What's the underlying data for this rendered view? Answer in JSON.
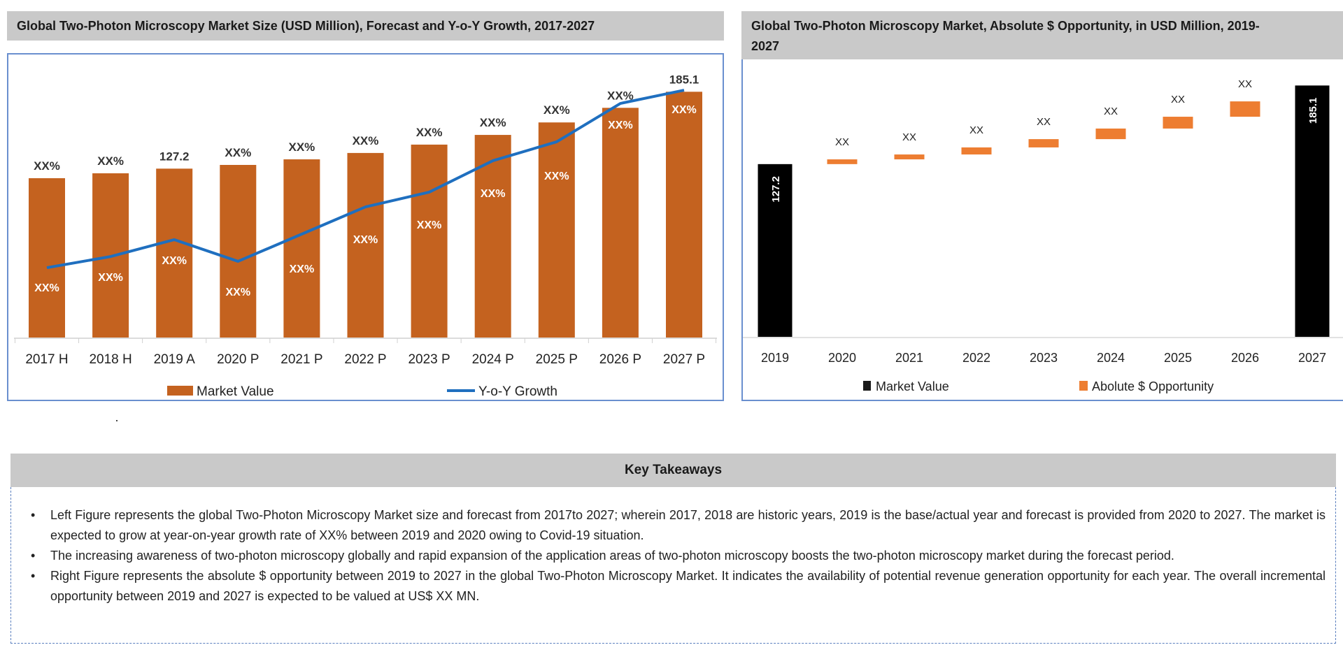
{
  "left_chart": {
    "title": "Global Two-Photon Microscopy Market Size (USD Million), Forecast and Y-o-Y Growth, 2017-2027",
    "legend": {
      "market_value": "Market Value",
      "yoy_growth": "Y-o-Y Growth"
    }
  },
  "right_chart": {
    "title_line1": "Global Two-Photon Microscopy Market, Absolute $ Opportunity, in USD Million, 2019-",
    "title_line2": "2027",
    "legend": {
      "market_value": "Market Value",
      "opportunity": "Abolute $ Opportunity"
    }
  },
  "key_takeaways": {
    "title": "Key Takeaways",
    "bullets": [
      "Left Figure represents the global Two-Photon Microscopy Market size and forecast from 2017to 2027; wherein 2017, 2018 are historic years, 2019 is the base/actual year and forecast is provided from 2020 to 2027. The market is expected to grow at year-on-year growth rate of XX% between 2019 and 2020 owing to Covid-19 situation.",
      "The increasing awareness of two-photon microscopy globally and rapid expansion of the application areas of two-photon microscopy boosts the two-photon microscopy market during the forecast period.",
      "Right Figure represents the absolute $ opportunity between 2019 to 2027 in the global Two-Photon Microscopy Market. It indicates the availability of potential revenue generation opportunity for each year. The overall incremental opportunity between 2019 and 2027 is expected to be valued at US$ XX MN."
    ]
  },
  "chart_data": [
    {
      "type": "bar+line",
      "title": "Global Two-Photon Microscopy Market Size (USD Million), Forecast and Y-o-Y Growth, 2017-2027",
      "categories": [
        "2017 H",
        "2018 H",
        "2019 A",
        "2020 P",
        "2021 P",
        "2022 P",
        "2023 P",
        "2024 P",
        "2025 P",
        "2026 P",
        "2027 P"
      ],
      "series": [
        {
          "name": "Market Value",
          "type": "bar",
          "color": "#C4621F",
          "values": [
            120.0,
            123.7,
            127.2,
            130.0,
            134.2,
            139.0,
            145.3,
            152.6,
            162.0,
            173.0,
            185.1
          ],
          "data_labels": [
            "XX%",
            "XX%",
            "127.2",
            "XX%",
            "XX%",
            "XX%",
            "XX%",
            "XX%",
            "XX%",
            "XX%",
            "185.1"
          ]
        },
        {
          "name": "Y-o-Y Growth",
          "type": "line",
          "color": "#1F6FBF",
          "axis": "secondary-unlabeled",
          "values": [
            52.6,
            61.0,
            73.7,
            57.4,
            77.9,
            98.4,
            109.5,
            133.2,
            147.4,
            176.3,
            186.3
          ],
          "data_labels": [
            "XX%",
            "XX%",
            "XX%",
            "XX%",
            "XX%",
            "XX%",
            "XX%",
            "XX%",
            "XX%",
            "XX%",
            "XX%"
          ]
        }
      ],
      "ylim": [
        0,
        215
      ],
      "y_axis_visible": false,
      "grid": false,
      "legend_position": "bottom"
    },
    {
      "type": "waterfall",
      "title": "Global Two-Photon Microscopy Market, Absolute $ Opportunity, in USD Million, 2019-2027",
      "categories": [
        "2019",
        "2020",
        "2021",
        "2022",
        "2023",
        "2024",
        "2025",
        "2026",
        "2027"
      ],
      "market_value": {
        "name": "Market Value",
        "color": "#000000",
        "values": {
          "2019": 127.2,
          "2027": 185.1
        },
        "data_labels": [
          "127.2",
          "185.1"
        ]
      },
      "opportunity": {
        "name": "Abolute $ Opportunity",
        "color": "#ED7D31",
        "ranges": [
          [
            127.2,
            130.7
          ],
          [
            130.7,
            134.3
          ],
          [
            134.3,
            139.5
          ],
          [
            139.5,
            145.6
          ],
          [
            145.6,
            153.4
          ],
          [
            153.4,
            162.1
          ],
          [
            162.1,
            173.4
          ]
        ],
        "data_labels": [
          "XX",
          "XX",
          "XX",
          "XX",
          "XX",
          "XX",
          "XX"
        ]
      },
      "ylim": [
        0,
        205
      ],
      "y_axis_visible": false,
      "grid": false,
      "legend_position": "bottom"
    }
  ]
}
